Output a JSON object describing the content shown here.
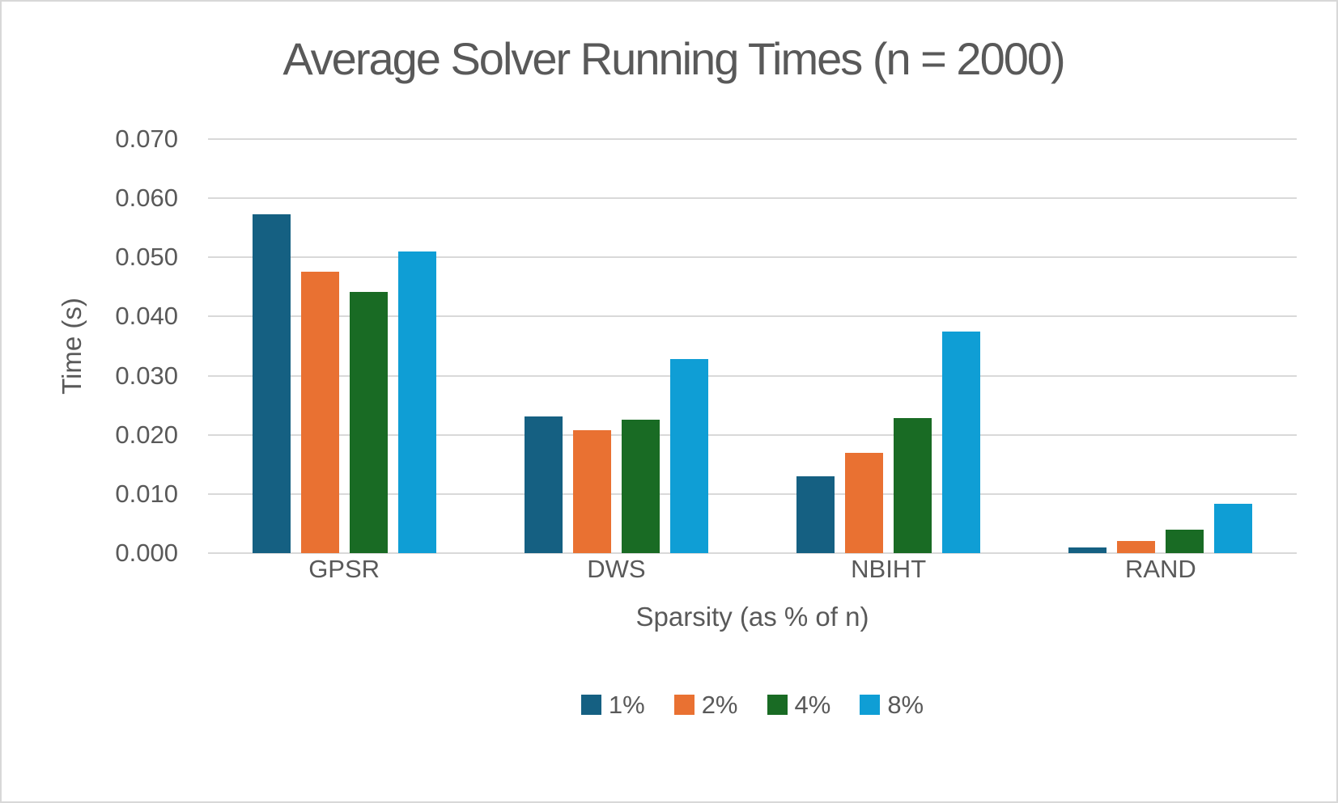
{
  "title": "Average Solver Running Times (n = 2000)",
  "chart_data": {
    "type": "bar",
    "title": "Average Solver Running Times (n = 2000)",
    "xlabel": "Sparsity (as % of n)",
    "ylabel": "Time (s)",
    "categories": [
      "GPSR",
      "DWS",
      "NBIHT",
      "RAND"
    ],
    "series": [
      {
        "name": "1%",
        "color": "#156082",
        "values": [
          0.0573,
          0.0231,
          0.013,
          0.001
        ]
      },
      {
        "name": "2%",
        "color": "#E97132",
        "values": [
          0.0476,
          0.0208,
          0.017,
          0.0021
        ]
      },
      {
        "name": "4%",
        "color": "#196B24",
        "values": [
          0.0441,
          0.0225,
          0.0229,
          0.004
        ]
      },
      {
        "name": "8%",
        "color": "#0F9ED5",
        "values": [
          0.051,
          0.0328,
          0.0375,
          0.0084
        ]
      }
    ],
    "ylim": [
      0,
      0.07
    ],
    "ytick_step": 0.01,
    "ytick_decimals": 3,
    "grid": true,
    "legend_position": "bottom"
  },
  "colors": {
    "text": "#595959",
    "gridline": "#d9d9d9",
    "background": "#ffffff",
    "border": "#d8d8d8"
  }
}
